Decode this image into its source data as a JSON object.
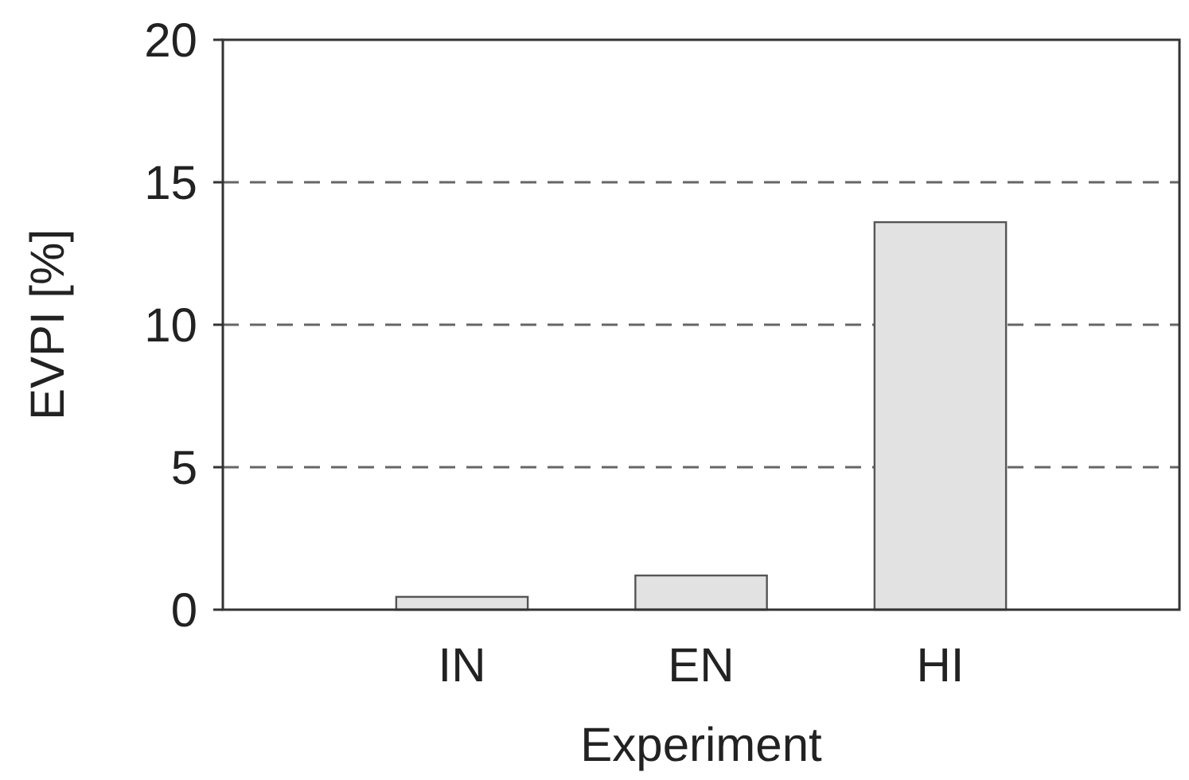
{
  "chart_data": {
    "type": "bar",
    "xlabel": "Experiment",
    "ylabel": "EVPI [%]",
    "categories": [
      "IN",
      "EN",
      "HI"
    ],
    "values": [
      0.45,
      1.2,
      13.6
    ],
    "color": "#e2e2e2",
    "ylim": [
      0,
      20
    ],
    "yticks": [
      0,
      5,
      10,
      15,
      20
    ],
    "grid": "y"
  }
}
